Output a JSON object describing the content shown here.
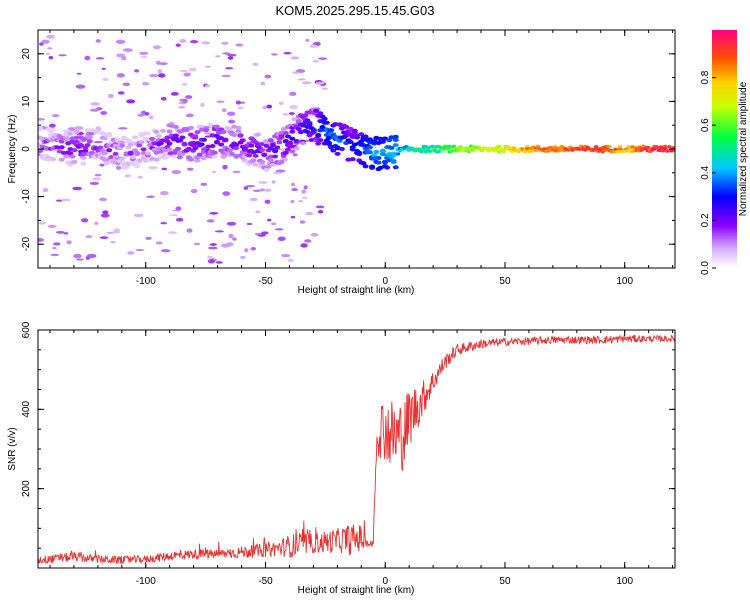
{
  "title": "KOM5.2025.295.15.45.G03",
  "chart_data": [
    {
      "type": "heatmap",
      "name": "spectrogram",
      "xlabel": "Height of straight line (km)",
      "ylabel": "Frequency (Hz)",
      "xlim": [
        -145,
        121
      ],
      "ylim": [
        -25,
        25
      ],
      "xticks": [
        -100,
        -50,
        0,
        50,
        100
      ],
      "yticks": [
        -20,
        -10,
        0,
        10,
        20
      ],
      "xtick_labels": [
        "-100",
        "-50",
        "0",
        "50",
        "100"
      ],
      "ytick_labels": [
        "-20",
        "-10",
        "0",
        "10",
        "20"
      ],
      "colorbar": {
        "label": "Normalized spectral amplitude",
        "range": [
          0,
          1
        ],
        "ticks": [
          0.0,
          0.2,
          0.4,
          0.6,
          0.8
        ],
        "tick_labels": [
          "0.0",
          "0.2",
          "0.4",
          "0.6",
          "0.8"
        ]
      },
      "ridge": {
        "x": [
          -145,
          -130,
          -120,
          -110,
          -100,
          -90,
          -80,
          -70,
          -60,
          -55,
          -50,
          -45,
          -40,
          -35,
          -30,
          -25,
          -20,
          -15,
          -10,
          -5,
          0,
          5,
          10,
          20,
          30,
          40,
          50,
          60,
          70,
          80,
          90,
          100,
          110,
          121
        ],
        "y": [
          1,
          0,
          1,
          -1,
          0,
          2,
          1,
          2,
          1,
          0,
          -1,
          0,
          2,
          4,
          5,
          4,
          2,
          1,
          0,
          -1,
          -1,
          -0.5,
          0,
          0,
          0,
          0,
          0,
          0,
          0,
          0,
          0,
          0,
          0,
          0
        ],
        "amplitude": [
          0.15,
          0.2,
          0.18,
          0.15,
          0.15,
          0.2,
          0.22,
          0.22,
          0.2,
          0.2,
          0.2,
          0.22,
          0.25,
          0.25,
          0.28,
          0.35,
          0.35,
          0.3,
          0.35,
          0.4,
          0.4,
          0.45,
          0.5,
          0.55,
          0.65,
          0.7,
          0.78,
          0.85,
          0.9,
          0.92,
          0.95,
          0.85,
          0.97,
          0.98
        ]
      }
    },
    {
      "type": "line",
      "name": "snr",
      "xlabel": "Height of straight line (km)",
      "ylabel": "SNR (v/v)",
      "xlim": [
        -145,
        121
      ],
      "ylim": [
        0,
        600
      ],
      "xticks": [
        -100,
        -50,
        0,
        50,
        100
      ],
      "yticks": [
        200,
        400,
        600
      ],
      "xtick_labels": [
        "-100",
        "-50",
        "0",
        "50",
        "100"
      ],
      "ytick_labels": [
        "200",
        "400",
        "600"
      ],
      "color": "#e83030",
      "series": [
        {
          "name": "SNR",
          "x": [
            -145,
            -130,
            -120,
            -110,
            -100,
            -90,
            -80,
            -70,
            -60,
            -50,
            -45,
            -40,
            -35,
            -30,
            -25,
            -20,
            -15,
            -10,
            -7,
            -5,
            -4,
            -3,
            0,
            2,
            5,
            8,
            10,
            15,
            20,
            25,
            30,
            40,
            50,
            60,
            70,
            80,
            90,
            100,
            110,
            121
          ],
          "values": [
            20,
            28,
            22,
            20,
            22,
            30,
            35,
            35,
            40,
            45,
            50,
            55,
            60,
            62,
            65,
            70,
            72,
            75,
            60,
            60,
            290,
            360,
            350,
            340,
            330,
            340,
            380,
            420,
            470,
            520,
            550,
            565,
            570,
            572,
            575,
            575,
            575,
            578,
            578,
            578
          ],
          "noise": [
            10,
            12,
            10,
            10,
            10,
            12,
            12,
            12,
            15,
            18,
            20,
            30,
            30,
            25,
            30,
            30,
            40,
            35,
            10,
            10,
            60,
            80,
            80,
            90,
            100,
            90,
            80,
            50,
            30,
            20,
            15,
            12,
            10,
            10,
            10,
            10,
            10,
            10,
            8,
            8
          ]
        }
      ]
    }
  ]
}
